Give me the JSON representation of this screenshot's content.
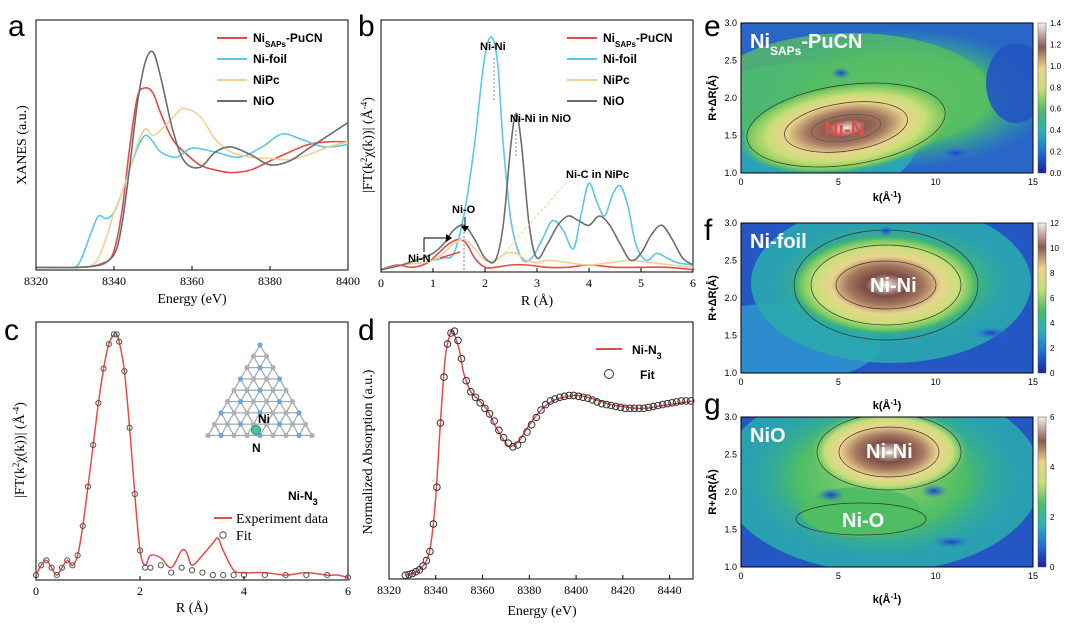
{
  "panel_letters": [
    "a",
    "b",
    "c",
    "d",
    "e",
    "f",
    "g"
  ],
  "colors": {
    "red": "#e84a4a",
    "cyan": "#5bc8e8",
    "beige": "#f3cf95",
    "gray": "#6d6d6d",
    "fit": "#555555"
  },
  "chart_data": [
    {
      "id": "a",
      "type": "line",
      "xlabel": "Energy (eV)",
      "ylabel": "XANES (a.u.)",
      "xlim": [
        8320,
        8400
      ],
      "ylim": [
        0,
        1.95
      ],
      "xticks": [
        8320,
        8340,
        8360,
        8380,
        8400
      ],
      "legend_position": "top-right",
      "series": [
        {
          "name": "Ni_SAPs-PuCN",
          "label_main": "Ni",
          "label_sub": "SAPs",
          "label_tail": "-PuCN",
          "color": "#e84a4a",
          "x": [
            8320,
            8330,
            8335,
            8338,
            8340,
            8342,
            8344,
            8346,
            8348,
            8350,
            8352,
            8355,
            8358,
            8362,
            8366,
            8370,
            8375,
            8380,
            8385,
            8390,
            8395,
            8400
          ],
          "y": [
            0.02,
            0.02,
            0.03,
            0.06,
            0.15,
            0.45,
            0.95,
            1.35,
            1.42,
            1.38,
            1.22,
            1.02,
            0.92,
            0.82,
            0.78,
            0.76,
            0.78,
            0.85,
            0.92,
            0.98,
            1.0,
            1.0
          ]
        },
        {
          "name": "Ni-foil",
          "color": "#5bc8e8",
          "x": [
            8320,
            8328,
            8331,
            8334,
            8336,
            8338,
            8340,
            8342,
            8344,
            8346,
            8348,
            8350,
            8352,
            8356,
            8360,
            8366,
            8372,
            8378,
            8383,
            8388,
            8394,
            8400
          ],
          "y": [
            0.02,
            0.02,
            0.05,
            0.28,
            0.42,
            0.4,
            0.45,
            0.6,
            0.78,
            0.95,
            1.05,
            1.0,
            0.92,
            0.88,
            0.95,
            0.92,
            0.88,
            0.96,
            1.06,
            1.02,
            0.96,
            0.98
          ]
        },
        {
          "name": "NiPc",
          "color": "#f3cf95",
          "x": [
            8320,
            8330,
            8335,
            8338,
            8340,
            8342,
            8344,
            8346,
            8348,
            8350,
            8353,
            8356,
            8358,
            8362,
            8366,
            8370,
            8375,
            8380,
            8385,
            8390,
            8395,
            8400
          ],
          "y": [
            0.02,
            0.02,
            0.05,
            0.25,
            0.45,
            0.6,
            0.78,
            0.98,
            1.1,
            1.05,
            1.12,
            1.22,
            1.26,
            1.2,
            1.02,
            0.92,
            0.88,
            0.87,
            0.86,
            0.9,
            0.96,
            1.0
          ]
        },
        {
          "name": "NiO",
          "color": "#6d6d6d",
          "x": [
            8320,
            8330,
            8336,
            8340,
            8342,
            8344,
            8346,
            8348,
            8350,
            8352,
            8355,
            8358,
            8362,
            8366,
            8370,
            8375,
            8380,
            8385,
            8390,
            8395,
            8400
          ],
          "y": [
            0.02,
            0.02,
            0.04,
            0.12,
            0.35,
            0.8,
            1.3,
            1.62,
            1.7,
            1.5,
            1.1,
            0.85,
            0.8,
            0.92,
            0.96,
            0.9,
            0.82,
            0.85,
            0.95,
            1.05,
            1.15
          ]
        }
      ]
    },
    {
      "id": "b",
      "type": "line",
      "xlabel": "R (Å)",
      "ylabel_main": "|FT(k",
      "ylabel_sup": "2",
      "ylabel_mid": "χ(k))| (Å",
      "ylabel_sup2": "-4",
      "ylabel_end": ")",
      "xlim": [
        0,
        6
      ],
      "ylim": [
        0,
        1.08
      ],
      "xticks": [
        0,
        1,
        2,
        3,
        4,
        5,
        6
      ],
      "legend_position": "top-right",
      "annotations": [
        "Ni-Ni",
        "Ni-Ni in NiO",
        "Ni-C in NiPc",
        "Ni-O",
        "Ni-N"
      ],
      "series": [
        {
          "name": "Ni_SAPs-PuCN",
          "label_main": "Ni",
          "label_sub": "SAPs",
          "label_tail": "-PuCN",
          "color": "#e84a4a",
          "x": [
            0,
            0.3,
            0.6,
            0.9,
            1.1,
            1.3,
            1.5,
            1.65,
            1.8,
            2.0,
            2.2,
            2.5,
            2.8,
            3.2,
            3.6,
            4.0,
            4.5,
            5.0,
            5.5,
            6.0
          ],
          "y": [
            0.01,
            0.03,
            0.02,
            0.04,
            0.08,
            0.12,
            0.14,
            0.12,
            0.06,
            0.02,
            0.02,
            0.03,
            0.03,
            0.02,
            0.02,
            0.03,
            0.02,
            0.02,
            0.02,
            0.01
          ]
        },
        {
          "name": "Ni-foil",
          "color": "#5bc8e8",
          "x": [
            0,
            0.4,
            0.8,
            1.0,
            1.2,
            1.4,
            1.6,
            1.8,
            1.95,
            2.05,
            2.15,
            2.25,
            2.35,
            2.5,
            2.7,
            2.9,
            3.1,
            3.3,
            3.5,
            3.7,
            3.85,
            4.0,
            4.15,
            4.3,
            4.45,
            4.6,
            4.75,
            4.9,
            5.1,
            5.3,
            5.5,
            5.7,
            6.0
          ],
          "y": [
            0.01,
            0.03,
            0.04,
            0.05,
            0.06,
            0.08,
            0.25,
            0.55,
            0.85,
            0.98,
            1.0,
            0.88,
            0.55,
            0.22,
            0.06,
            0.06,
            0.14,
            0.22,
            0.18,
            0.1,
            0.25,
            0.38,
            0.3,
            0.24,
            0.33,
            0.37,
            0.28,
            0.12,
            0.05,
            0.08,
            0.06,
            0.04,
            0.03
          ]
        },
        {
          "name": "NiPc",
          "color": "#f3cf95",
          "x": [
            0,
            0.4,
            0.8,
            1.0,
            1.2,
            1.4,
            1.6,
            1.8,
            2.0,
            2.2,
            2.4,
            2.6,
            2.8,
            3.0,
            3.2,
            3.6,
            4.0,
            4.4,
            4.8,
            5.2,
            5.6,
            6.0
          ],
          "y": [
            0.01,
            0.03,
            0.04,
            0.05,
            0.08,
            0.12,
            0.14,
            0.1,
            0.05,
            0.05,
            0.08,
            0.08,
            0.05,
            0.04,
            0.05,
            0.04,
            0.03,
            0.04,
            0.05,
            0.04,
            0.03,
            0.02
          ]
        },
        {
          "name": "NiO",
          "color": "#6d6d6d",
          "x": [
            0,
            0.4,
            0.8,
            1.0,
            1.2,
            1.4,
            1.6,
            1.8,
            2.0,
            2.2,
            2.35,
            2.5,
            2.6,
            2.7,
            2.85,
            3.0,
            3.2,
            3.4,
            3.6,
            3.8,
            4.0,
            4.2,
            4.4,
            4.6,
            4.8,
            5.0,
            5.2,
            5.4,
            5.6,
            5.8,
            6.0
          ],
          "y": [
            0.01,
            0.03,
            0.06,
            0.08,
            0.12,
            0.18,
            0.2,
            0.14,
            0.06,
            0.05,
            0.2,
            0.55,
            0.68,
            0.55,
            0.2,
            0.06,
            0.12,
            0.2,
            0.24,
            0.22,
            0.2,
            0.24,
            0.2,
            0.12,
            0.05,
            0.08,
            0.16,
            0.2,
            0.14,
            0.06,
            0.03
          ]
        }
      ]
    },
    {
      "id": "c",
      "type": "line",
      "xlabel": "R (Å)",
      "ylabel_main": "|FT(k",
      "ylabel_sup": "2",
      "ylabel_mid": "χ(k))| (Å",
      "ylabel_sup2": "-4",
      "ylabel_end": ")",
      "xlim": [
        0,
        6
      ],
      "ylim": [
        0,
        1.05
      ],
      "xticks": [
        0,
        2,
        4,
        6
      ],
      "inset_labels": [
        "Ni",
        "N"
      ],
      "fit_name": "Ni-N",
      "fit_sub": "3",
      "series": [
        {
          "name": "Experiment data",
          "color": "#e84a4a",
          "x": [
            0,
            0.1,
            0.2,
            0.3,
            0.4,
            0.5,
            0.6,
            0.7,
            0.8,
            0.9,
            1.0,
            1.1,
            1.2,
            1.3,
            1.4,
            1.5,
            1.55,
            1.6,
            1.7,
            1.8,
            1.9,
            2.0,
            2.1,
            2.2,
            2.4,
            2.6,
            2.8,
            2.9,
            3.0,
            3.2,
            3.4,
            3.5,
            3.6,
            3.8,
            4.0,
            4.4,
            4.8,
            5.2,
            5.6,
            5.8,
            6.0
          ],
          "y": [
            0.02,
            0.06,
            0.08,
            0.05,
            0.02,
            0.05,
            0.08,
            0.06,
            0.1,
            0.22,
            0.38,
            0.55,
            0.72,
            0.86,
            0.96,
            1.0,
            1.0,
            0.97,
            0.85,
            0.62,
            0.35,
            0.12,
            0.06,
            0.1,
            0.09,
            0.05,
            0.12,
            0.11,
            0.06,
            0.1,
            0.15,
            0.17,
            0.12,
            0.04,
            0.03,
            0.03,
            0.02,
            0.03,
            0.02,
            0.02,
            0.01
          ]
        },
        {
          "name": "Fit",
          "color": "#555555",
          "type": "scatter",
          "x": [
            0,
            0.1,
            0.2,
            0.3,
            0.4,
            0.5,
            0.6,
            0.7,
            0.8,
            0.9,
            1.0,
            1.1,
            1.2,
            1.3,
            1.4,
            1.5,
            1.55,
            1.6,
            1.7,
            1.8,
            1.9,
            2.0,
            2.1,
            2.2,
            2.4,
            2.6,
            2.8,
            3.0,
            3.2,
            3.4,
            3.6,
            3.8,
            4.0,
            4.4,
            4.8,
            5.2,
            5.6,
            6.0
          ],
          "y": [
            0.02,
            0.06,
            0.08,
            0.05,
            0.02,
            0.05,
            0.08,
            0.06,
            0.1,
            0.22,
            0.38,
            0.55,
            0.72,
            0.86,
            0.96,
            1.0,
            1.0,
            0.97,
            0.85,
            0.62,
            0.35,
            0.12,
            0.05,
            0.05,
            0.06,
            0.03,
            0.05,
            0.04,
            0.03,
            0.02,
            0.02,
            0.02,
            0.02,
            0.02,
            0.02,
            0.02,
            0.02,
            0.01
          ]
        }
      ]
    },
    {
      "id": "d",
      "type": "line",
      "xlabel": "Energy (eV)",
      "ylabel": "Normalized Absorption (a.u.)",
      "xlim": [
        8320,
        8450
      ],
      "ylim": [
        0,
        1.4
      ],
      "xticks": [
        8320,
        8340,
        8360,
        8380,
        8400,
        8420,
        8440
      ],
      "legend_position": "top-right",
      "series": [
        {
          "name": "Ni-N3",
          "label_main": "Ni-N",
          "label_sub": "3",
          "color": "#e84a4a",
          "x": [
            8327,
            8330,
            8333,
            8336,
            8338,
            8340,
            8342,
            8344,
            8346,
            8347,
            8348,
            8350,
            8352,
            8355,
            8358,
            8362,
            8366,
            8370,
            8372,
            8376,
            8380,
            8385,
            8390,
            8395,
            8400,
            8405,
            8410,
            8415,
            8420,
            8425,
            8430,
            8435,
            8440,
            8445,
            8450
          ],
          "y": [
            0.02,
            0.03,
            0.05,
            0.1,
            0.2,
            0.45,
            0.85,
            1.2,
            1.33,
            1.35,
            1.33,
            1.25,
            1.12,
            1.02,
            0.98,
            0.92,
            0.82,
            0.74,
            0.72,
            0.76,
            0.84,
            0.92,
            0.97,
            0.99,
            1.0,
            0.99,
            0.97,
            0.95,
            0.94,
            0.93,
            0.93,
            0.94,
            0.95,
            0.96,
            0.97
          ]
        },
        {
          "name": "Fit",
          "color": "#333333",
          "type": "scatter",
          "x": [
            8327,
            8328.5,
            8330,
            8331.5,
            8333,
            8334.5,
            8336,
            8337.5,
            8339,
            8340.5,
            8342,
            8343.5,
            8345,
            8346.5,
            8348,
            8349.5,
            8351,
            8353,
            8355,
            8357,
            8359,
            8361,
            8363,
            8365,
            8367,
            8369,
            8371,
            8373,
            8375,
            8377,
            8379,
            8381,
            8383,
            8385,
            8387,
            8389,
            8391,
            8393,
            8395,
            8397,
            8399,
            8401,
            8403,
            8405,
            8407,
            8409,
            8411,
            8413,
            8415,
            8417,
            8419,
            8421,
            8423,
            8425,
            8427,
            8429,
            8431,
            8433,
            8435,
            8437,
            8439,
            8441,
            8443,
            8445,
            8447,
            8449
          ],
          "y": [
            0.02,
            0.025,
            0.03,
            0.04,
            0.05,
            0.07,
            0.1,
            0.15,
            0.3,
            0.5,
            0.85,
            1.1,
            1.28,
            1.34,
            1.35,
            1.3,
            1.2,
            1.08,
            1.02,
            0.99,
            0.96,
            0.93,
            0.9,
            0.86,
            0.81,
            0.77,
            0.74,
            0.72,
            0.73,
            0.76,
            0.8,
            0.84,
            0.88,
            0.92,
            0.95,
            0.97,
            0.98,
            0.99,
            0.995,
            1.0,
            1.0,
            0.995,
            0.99,
            0.985,
            0.975,
            0.965,
            0.955,
            0.95,
            0.945,
            0.94,
            0.935,
            0.93,
            0.93,
            0.93,
            0.93,
            0.93,
            0.935,
            0.94,
            0.945,
            0.95,
            0.955,
            0.96,
            0.965,
            0.97,
            0.97,
            0.97
          ]
        }
      ]
    },
    {
      "id": "e",
      "type": "heatmap",
      "title_main": "Ni",
      "title_sub": "SAPs",
      "title_tail": "-PuCN",
      "peak_label": "Ni-N",
      "xlabel": "k(Å",
      "xlabel_sup": "-1",
      "xlabel_end": ")",
      "ylabel": "R+ΔR(Å)",
      "xlim": [
        0,
        15
      ],
      "ylim": [
        1.0,
        3.0
      ],
      "xticks": [
        0,
        5,
        10,
        15
      ],
      "yticks": [
        "1.0",
        "1.5",
        "2.0",
        "2.5",
        "3.0"
      ],
      "colorbar_ticks": [
        "0.0",
        "0.2",
        "0.4",
        "0.6",
        "0.8",
        "1.0",
        "1.2",
        "1.4"
      ]
    },
    {
      "id": "f",
      "type": "heatmap",
      "title_main": "Ni-foil",
      "title_sub": "",
      "title_tail": "",
      "peak_label": "Ni-Ni",
      "xlabel": "k(Å",
      "xlabel_sup": "-1",
      "xlabel_end": ")",
      "ylabel": "R+ΔR(Å)",
      "xlim": [
        0,
        15
      ],
      "ylim": [
        1.0,
        3.0
      ],
      "xticks": [
        0,
        5,
        10,
        15
      ],
      "yticks": [
        "1.0",
        "1.5",
        "2.0",
        "2.5",
        "3.0"
      ],
      "colorbar_ticks": [
        "0",
        "2",
        "4",
        "6",
        "8",
        "10",
        "12"
      ]
    },
    {
      "id": "g",
      "type": "heatmap",
      "title_main": "NiO",
      "title_sub": "",
      "title_tail": "",
      "peak_label": "Ni-Ni",
      "second_label": "Ni-O",
      "xlabel": "k(Å",
      "xlabel_sup": "-1",
      "xlabel_end": ")",
      "ylabel": "R+ΔR(Å)",
      "xlim": [
        0,
        15
      ],
      "ylim": [
        1.0,
        3.0
      ],
      "xticks": [
        0,
        5,
        10,
        15
      ],
      "yticks": [
        "1.0",
        "1.5",
        "2.0",
        "2.5",
        "3.0"
      ],
      "colorbar_ticks": [
        "0",
        "2",
        "4",
        "6"
      ]
    }
  ]
}
